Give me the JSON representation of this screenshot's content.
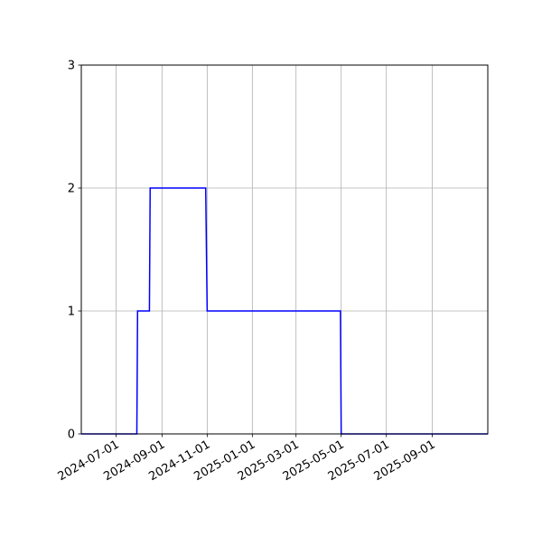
{
  "chart_data": {
    "type": "line",
    "title": "",
    "xlabel": "",
    "ylabel": "",
    "x_axis_type": "date",
    "xlim": [
      "2024-05-15",
      "2025-11-15"
    ],
    "ylim": [
      0,
      3
    ],
    "x_ticks": [
      "2024-07-01",
      "2024-09-01",
      "2024-11-01",
      "2025-01-01",
      "2025-03-01",
      "2025-05-01",
      "2025-07-01",
      "2025-09-01"
    ],
    "y_ticks": [
      0,
      1,
      2,
      3
    ],
    "grid": true,
    "series": [
      {
        "color": "#0000ff",
        "step": true,
        "points": [
          {
            "x": "2024-05-15",
            "y": 0
          },
          {
            "x": "2024-07-29",
            "y": 0
          },
          {
            "x": "2024-07-30",
            "y": 1
          },
          {
            "x": "2024-08-15",
            "y": 1
          },
          {
            "x": "2024-08-16",
            "y": 2
          },
          {
            "x": "2024-10-30",
            "y": 2
          },
          {
            "x": "2024-11-01",
            "y": 1
          },
          {
            "x": "2025-04-30",
            "y": 1
          },
          {
            "x": "2025-05-01",
            "y": 0
          },
          {
            "x": "2025-11-15",
            "y": 0
          }
        ]
      }
    ]
  }
}
